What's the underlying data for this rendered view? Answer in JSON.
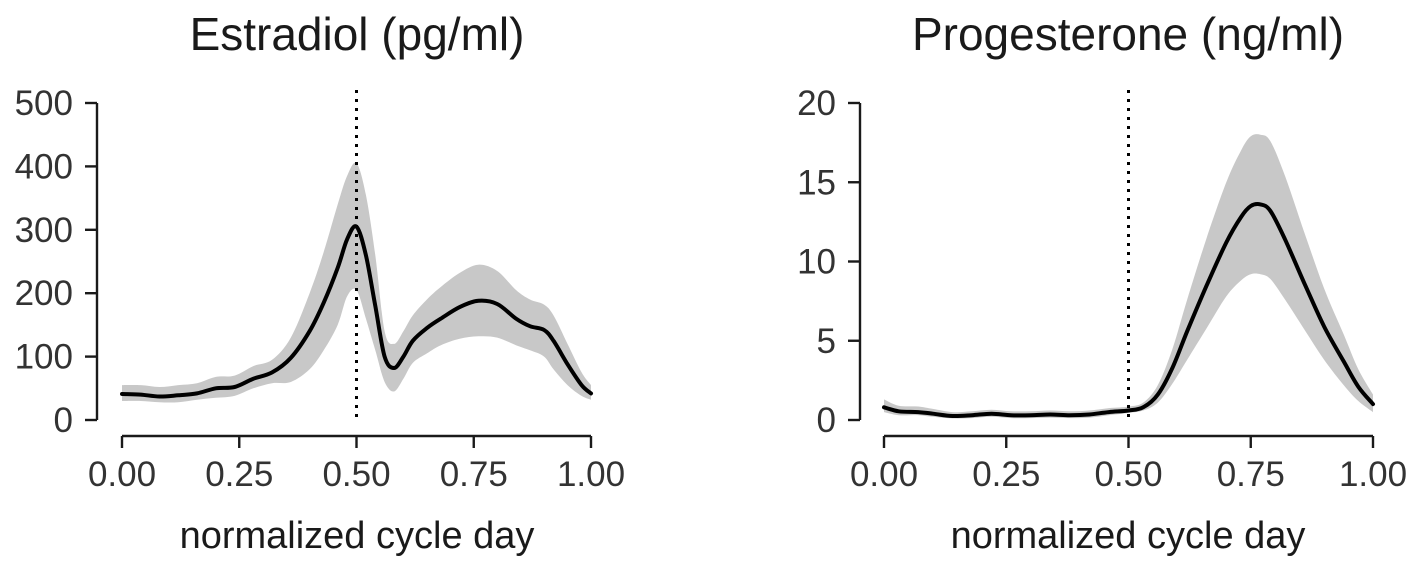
{
  "colors": {
    "line": "#000000",
    "band": "#c8c8c8",
    "axis": "#1a1a1a",
    "vline": "#000000"
  },
  "chart_data": [
    {
      "type": "line",
      "title": "Estradiol (pg/ml)",
      "xlabel": "normalized cycle day",
      "ylabel": "",
      "xlim": [
        0,
        1
      ],
      "ylim": [
        0,
        500
      ],
      "xticks": [
        0,
        0.25,
        0.5,
        0.75,
        1
      ],
      "xtick_labels": [
        "0.00",
        "0.25",
        "0.50",
        "0.75",
        "1.00"
      ],
      "yticks": [
        0,
        100,
        200,
        300,
        400,
        500
      ],
      "ytick_labels": [
        "0",
        "100",
        "200",
        "300",
        "400",
        "500"
      ],
      "vline": 0.5,
      "series": [
        {
          "name": "mean",
          "x": [
            0,
            0.04,
            0.08,
            0.12,
            0.16,
            0.2,
            0.24,
            0.28,
            0.32,
            0.36,
            0.4,
            0.43,
            0.46,
            0.48,
            0.5,
            0.52,
            0.54,
            0.56,
            0.58,
            0.6,
            0.62,
            0.65,
            0.68,
            0.72,
            0.76,
            0.8,
            0.84,
            0.87,
            0.9,
            0.92,
            0.95,
            0.98,
            1
          ],
          "y": [
            41,
            40,
            37,
            39,
            42,
            50,
            52,
            65,
            75,
            98,
            140,
            185,
            240,
            285,
            305,
            260,
            180,
            100,
            82,
            100,
            125,
            145,
            160,
            178,
            188,
            183,
            160,
            148,
            142,
            125,
            88,
            55,
            42
          ],
          "lower": [
            30,
            30,
            28,
            28,
            32,
            35,
            38,
            50,
            58,
            60,
            80,
            110,
            150,
            195,
            205,
            160,
            110,
            60,
            45,
            65,
            90,
            105,
            118,
            128,
            132,
            130,
            118,
            110,
            100,
            80,
            55,
            38,
            32
          ],
          "upper": [
            55,
            55,
            52,
            55,
            58,
            68,
            70,
            85,
            95,
            130,
            200,
            265,
            340,
            385,
            405,
            355,
            260,
            140,
            120,
            140,
            165,
            190,
            210,
            232,
            245,
            235,
            205,
            190,
            182,
            165,
            120,
            75,
            55
          ]
        }
      ]
    },
    {
      "type": "line",
      "title": "Progesterone (ng/ml)",
      "xlabel": "normalized cycle day",
      "ylabel": "",
      "xlim": [
        0,
        1
      ],
      "ylim": [
        0,
        20
      ],
      "xticks": [
        0,
        0.25,
        0.5,
        0.75,
        1
      ],
      "xtick_labels": [
        "0.00",
        "0.25",
        "0.50",
        "0.75",
        "1.00"
      ],
      "yticks": [
        0,
        5,
        10,
        15,
        20
      ],
      "ytick_labels": [
        "0",
        "5",
        "10",
        "15",
        "20"
      ],
      "vline": 0.5,
      "series": [
        {
          "name": "mean",
          "x": [
            0,
            0.03,
            0.07,
            0.1,
            0.14,
            0.18,
            0.22,
            0.26,
            0.3,
            0.34,
            0.38,
            0.42,
            0.46,
            0.5,
            0.53,
            0.56,
            0.59,
            0.62,
            0.66,
            0.7,
            0.73,
            0.75,
            0.77,
            0.79,
            0.82,
            0.86,
            0.9,
            0.94,
            0.97,
            1
          ],
          "y": [
            0.8,
            0.55,
            0.5,
            0.4,
            0.25,
            0.3,
            0.4,
            0.3,
            0.3,
            0.35,
            0.3,
            0.35,
            0.5,
            0.6,
            0.8,
            1.6,
            3.3,
            5.6,
            8.5,
            11.2,
            12.8,
            13.5,
            13.6,
            13.2,
            11.4,
            8.6,
            5.9,
            3.7,
            2.1,
            1.0
          ],
          "lower": [
            0.5,
            0.3,
            0.3,
            0.2,
            0.1,
            0.12,
            0.2,
            0.12,
            0.12,
            0.15,
            0.12,
            0.15,
            0.3,
            0.45,
            0.6,
            1.1,
            2.3,
            3.8,
            5.8,
            7.8,
            8.8,
            9.2,
            9.2,
            8.9,
            7.6,
            5.7,
            3.8,
            2.2,
            1.2,
            0.5
          ],
          "upper": [
            1.3,
            0.9,
            0.85,
            0.7,
            0.5,
            0.55,
            0.65,
            0.55,
            0.55,
            0.6,
            0.55,
            0.6,
            0.75,
            0.85,
            1.1,
            2.2,
            4.5,
            7.6,
            11.5,
            15.0,
            17.0,
            17.9,
            18.0,
            17.6,
            15.4,
            11.8,
            8.3,
            5.4,
            3.2,
            1.6
          ]
        }
      ]
    }
  ]
}
